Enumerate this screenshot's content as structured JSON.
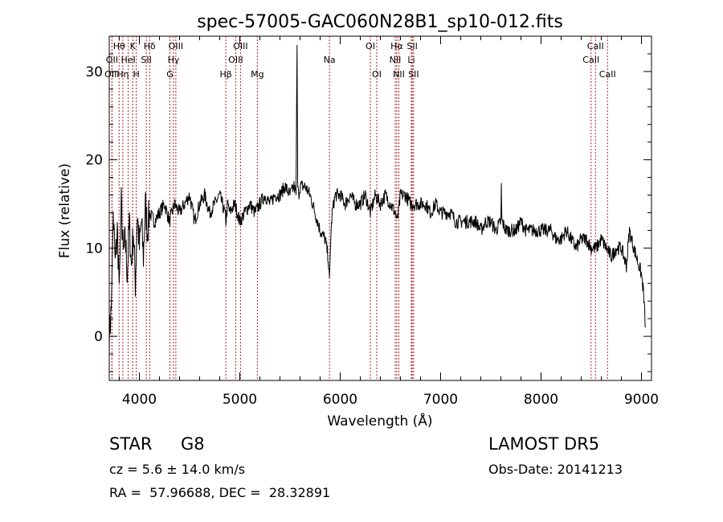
{
  "chart_data": {
    "type": "line",
    "title": "spec-57005-GAC060N28B1_sp10-012.fits",
    "xlabel": "Wavelength (Å)",
    "ylabel": "Flux (relative)",
    "xlim": [
      3700,
      9100
    ],
    "ylim": [
      -5,
      34
    ],
    "xticks": [
      4000,
      5000,
      6000,
      7000,
      8000,
      9000
    ],
    "xticklabels": [
      "4000",
      "5000",
      "6000",
      "7000",
      "8000",
      "9000"
    ],
    "yticks": [
      0,
      10,
      20,
      30
    ],
    "yticklabels": [
      "0",
      "10",
      "20",
      "30"
    ],
    "grid": false,
    "line_color": "#000000",
    "marker_color": "#b22222",
    "series": [
      {
        "x": [
          3700,
          3720,
          3740,
          3760,
          3780,
          3800,
          3820,
          3840,
          3860,
          3880,
          3900,
          3920,
          3940,
          3960,
          3980,
          4000,
          4020,
          4040,
          4060,
          4080,
          4100,
          4150,
          4200,
          4250,
          4300,
          4350,
          4400,
          4450,
          4500,
          4550,
          4600,
          4650,
          4700,
          4750,
          4800,
          4850,
          4861,
          4880,
          4900,
          4950,
          5000,
          5050,
          5100,
          5150,
          5200,
          5250,
          5300,
          5350,
          5400,
          5450,
          5500,
          5540,
          5560,
          5570,
          5577,
          5585,
          5600,
          5650,
          5700,
          5750,
          5800,
          5850,
          5880,
          5893,
          5905,
          5920,
          5950,
          6000,
          6050,
          6100,
          6150,
          6200,
          6250,
          6300,
          6350,
          6400,
          6450,
          6500,
          6550,
          6563,
          6580,
          6600,
          6650,
          6700,
          6750,
          6800,
          6850,
          6900,
          6950,
          7000,
          7050,
          7100,
          7150,
          7200,
          7250,
          7300,
          7350,
          7400,
          7450,
          7500,
          7550,
          7600,
          7605,
          7610,
          7650,
          7700,
          7750,
          7800,
          7850,
          7900,
          7950,
          8000,
          8050,
          8100,
          8150,
          8200,
          8250,
          8300,
          8350,
          8400,
          8450,
          8500,
          8550,
          8600,
          8650,
          8700,
          8750,
          8800,
          8850,
          8880,
          8900,
          8950,
          9000,
          9020,
          9040
        ],
        "y": [
          0,
          3,
          14,
          8,
          12,
          6,
          15,
          9,
          11,
          7,
          13,
          8,
          12,
          6,
          14,
          10,
          13,
          9,
          15,
          12,
          14,
          13,
          14,
          15,
          13,
          15,
          14,
          15,
          16,
          13,
          15,
          16,
          14,
          15,
          16,
          14,
          13,
          15,
          14,
          15,
          13,
          14,
          15,
          14,
          15,
          16,
          15,
          16,
          16,
          17,
          16,
          17,
          16,
          33,
          17,
          16,
          17,
          17,
          16,
          14,
          12,
          11,
          9,
          6,
          11,
          14,
          16,
          16,
          15,
          16,
          15,
          15,
          16,
          14,
          16,
          15,
          16,
          15,
          14,
          13,
          14,
          16,
          16,
          15,
          15,
          15,
          15,
          14,
          15,
          14,
          14,
          14,
          13,
          13,
          13,
          13,
          13,
          12,
          13,
          13,
          12,
          13,
          17,
          13,
          12,
          12,
          12,
          13,
          12,
          12,
          12,
          12,
          12,
          12,
          11,
          11,
          12,
          11,
          10,
          11,
          11,
          10,
          10,
          11,
          10,
          9,
          10,
          10,
          8,
          12,
          11,
          9,
          7,
          5,
          1
        ]
      }
    ],
    "line_markers": [
      {
        "label": "Hθ",
        "x": 3798,
        "row": 0
      },
      {
        "label": "OII",
        "x": 3727,
        "row": 1
      },
      {
        "label": "OIII",
        "x": 3727,
        "row": 2
      },
      {
        "label": "K",
        "x": 3934,
        "row": 0
      },
      {
        "label": "HeI",
        "x": 3889,
        "row": 1
      },
      {
        "label": "Hη",
        "x": 3835,
        "row": 2
      },
      {
        "label": "SII",
        "x": 4069,
        "row": 1
      },
      {
        "label": "H",
        "x": 3969,
        "row": 2
      },
      {
        "label": "Hδ",
        "x": 4102,
        "row": 0
      },
      {
        "label": "OIII",
        "x": 4363,
        "row": 0
      },
      {
        "label": "Hγ",
        "x": 4340,
        "row": 1
      },
      {
        "label": "G",
        "x": 4304,
        "row": 2
      },
      {
        "label": "Hβ",
        "x": 4861,
        "row": 2
      },
      {
        "label": "OIII",
        "x": 5007,
        "row": 0
      },
      {
        "label": "OIII",
        "x": 4959,
        "row": 1
      },
      {
        "label": "Mg",
        "x": 5175,
        "row": 2
      },
      {
        "label": "Na",
        "x": 5893,
        "row": 1
      },
      {
        "label": "OI",
        "x": 6300,
        "row": 0
      },
      {
        "label": "OI",
        "x": 6364,
        "row": 2
      },
      {
        "label": "Hα",
        "x": 6563,
        "row": 0
      },
      {
        "label": "NII",
        "x": 6548,
        "row": 1
      },
      {
        "label": "NII",
        "x": 6584,
        "row": 2
      },
      {
        "label": "SII",
        "x": 6717,
        "row": 0
      },
      {
        "label": "Li",
        "x": 6708,
        "row": 1
      },
      {
        "label": "SII",
        "x": 6731,
        "row": 2
      },
      {
        "label": "CaII",
        "x": 8542,
        "row": 0
      },
      {
        "label": "CaII",
        "x": 8498,
        "row": 1
      },
      {
        "label": "CaII",
        "x": 8662,
        "row": 2
      }
    ]
  },
  "info": {
    "object_class": "STAR",
    "subclass": "G8",
    "survey": "LAMOST DR5",
    "redshift": "cz = 5.6 ± 14.0 km/s",
    "obs_date": "Obs-Date: 20141213",
    "coords": "RA =  57.96688, DEC =  28.32891"
  }
}
